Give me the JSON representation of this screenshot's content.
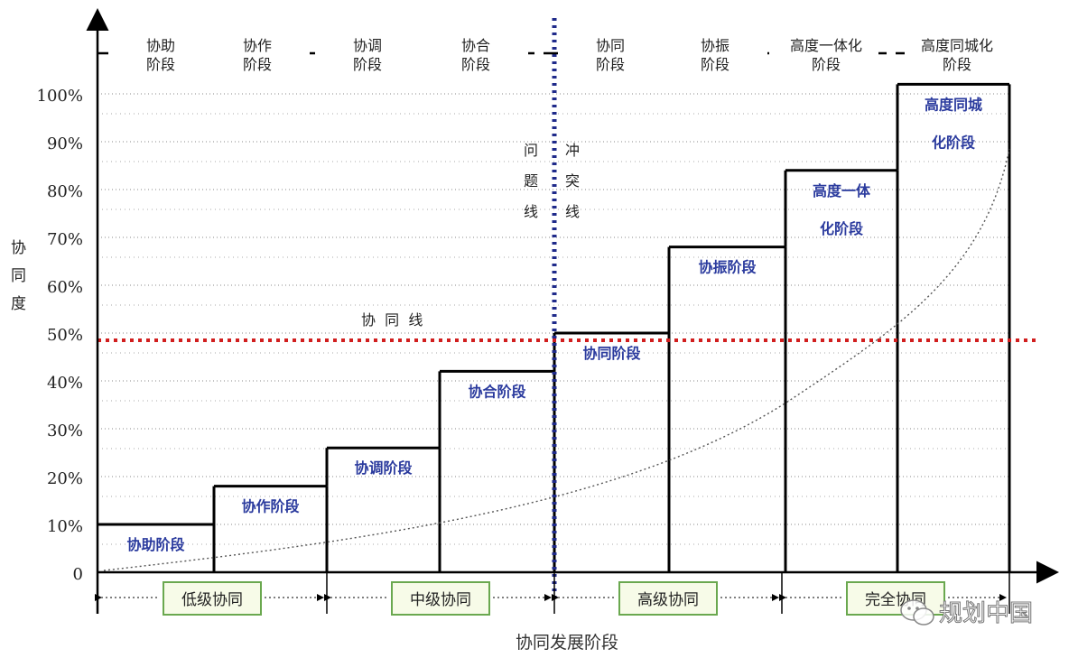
{
  "top_stages": [
    "协助\n阶段",
    "协作\n阶段",
    "协调\n阶段",
    "协合\n阶段",
    "协同\n阶段",
    "协振\n阶段",
    "高度一体化\n阶段",
    "高度同城化\n阶段"
  ],
  "y_axis": {
    "label": "协\n同\n度",
    "ticks": [
      "0",
      "10%",
      "20%",
      "30%",
      "40%",
      "50%",
      "60%",
      "70%",
      "80%",
      "90%",
      "100%"
    ]
  },
  "x_axis_label": "协同发展阶段",
  "collab_line_label": "协  同  线",
  "problem_line_label": "问\n题\n线",
  "conflict_line_label": "冲\n突\n线",
  "steps": [
    {
      "label": "协助阶段",
      "value": 10
    },
    {
      "label": "协作阶段",
      "value": 18
    },
    {
      "label": "协调阶段",
      "value": 26
    },
    {
      "label": "协合阶段",
      "value": 42
    },
    {
      "label": "协同阶段",
      "value": 50
    },
    {
      "label": "协振阶段",
      "value": 68
    },
    {
      "label": "高度一体\n化阶段",
      "value": 84
    },
    {
      "label": "高度同城\n化阶段",
      "value": 102
    }
  ],
  "levels": [
    "低级协同",
    "中级协同",
    "高级协同",
    "完全协同"
  ],
  "watermark": "规划中国",
  "colors": {
    "step_label": "#2b3b9e",
    "collab_line": "#d11e1e",
    "divider": "#1f2a8a",
    "level_box_border": "#6aa84f",
    "level_box_fill": "#f7fbe8"
  }
}
